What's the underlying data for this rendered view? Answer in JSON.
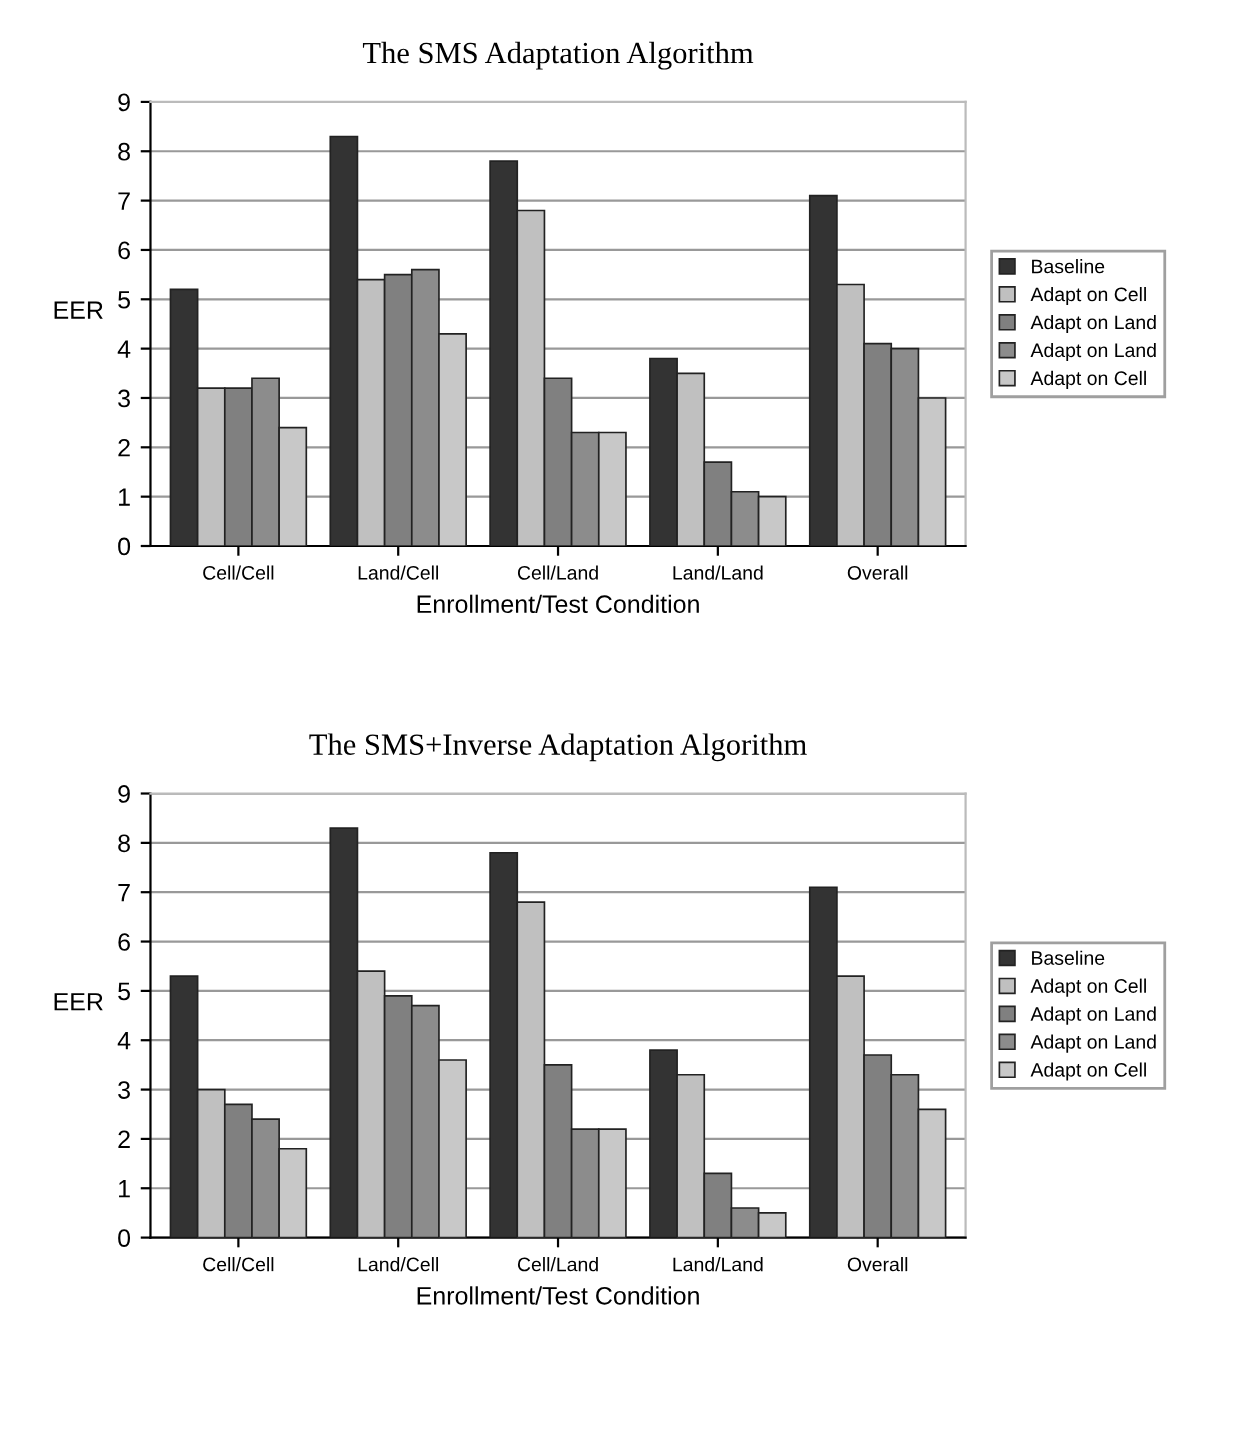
{
  "chart_data": [
    {
      "type": "bar",
      "title": "The SMS Adaptation Algorithm",
      "xlabel": "Enrollment/Test Condition",
      "ylabel": "EER",
      "categories": [
        "Cell/Cell",
        "Land/Cell",
        "Cell/Land",
        "Land/Land",
        "Overall"
      ],
      "series": [
        {
          "name": "Baseline",
          "color": "#333333",
          "values": [
            5.2,
            8.3,
            7.8,
            3.8,
            7.1
          ]
        },
        {
          "name": "Adapt on Cell",
          "color": "#c0c0c0",
          "values": [
            3.2,
            5.4,
            6.8,
            3.5,
            5.3
          ]
        },
        {
          "name": "Adapt on Land",
          "color": "#808080",
          "values": [
            3.2,
            5.5,
            3.4,
            1.7,
            4.1
          ]
        },
        {
          "name": "Adapt on Land",
          "color": "#8c8c8c",
          "values": [
            3.4,
            5.6,
            2.3,
            1.1,
            4.0
          ]
        },
        {
          "name": "Adapt on Cell",
          "color": "#c8c8c8",
          "values": [
            2.4,
            4.3,
            2.3,
            1.0,
            3.0
          ]
        }
      ],
      "ylim": [
        0,
        9
      ],
      "yticks": [
        0,
        1,
        2,
        3,
        4,
        5,
        6,
        7,
        8,
        9
      ],
      "grid": "y",
      "legend": "right"
    },
    {
      "type": "bar",
      "title": "The SMS+Inverse Adaptation Algorithm",
      "xlabel": "Enrollment/Test Condition",
      "ylabel": "EER",
      "categories": [
        "Cell/Cell",
        "Land/Cell",
        "Cell/Land",
        "Land/Land",
        "Overall"
      ],
      "series": [
        {
          "name": "Baseline",
          "color": "#333333",
          "values": [
            5.3,
            8.3,
            7.8,
            3.8,
            7.1
          ]
        },
        {
          "name": "Adapt on Cell",
          "color": "#c0c0c0",
          "values": [
            3.0,
            5.4,
            6.8,
            3.3,
            5.3
          ]
        },
        {
          "name": "Adapt on Land",
          "color": "#808080",
          "values": [
            2.7,
            4.9,
            3.5,
            1.3,
            3.7
          ]
        },
        {
          "name": "Adapt on Land",
          "color": "#8c8c8c",
          "values": [
            2.4,
            4.7,
            2.2,
            0.6,
            3.3
          ]
        },
        {
          "name": "Adapt on Cell",
          "color": "#c8c8c8",
          "values": [
            1.8,
            3.6,
            2.2,
            0.5,
            2.6
          ]
        }
      ],
      "ylim": [
        0,
        9
      ],
      "yticks": [
        0,
        1,
        2,
        3,
        4,
        5,
        6,
        7,
        8,
        9
      ],
      "grid": "y",
      "legend": "right"
    }
  ]
}
